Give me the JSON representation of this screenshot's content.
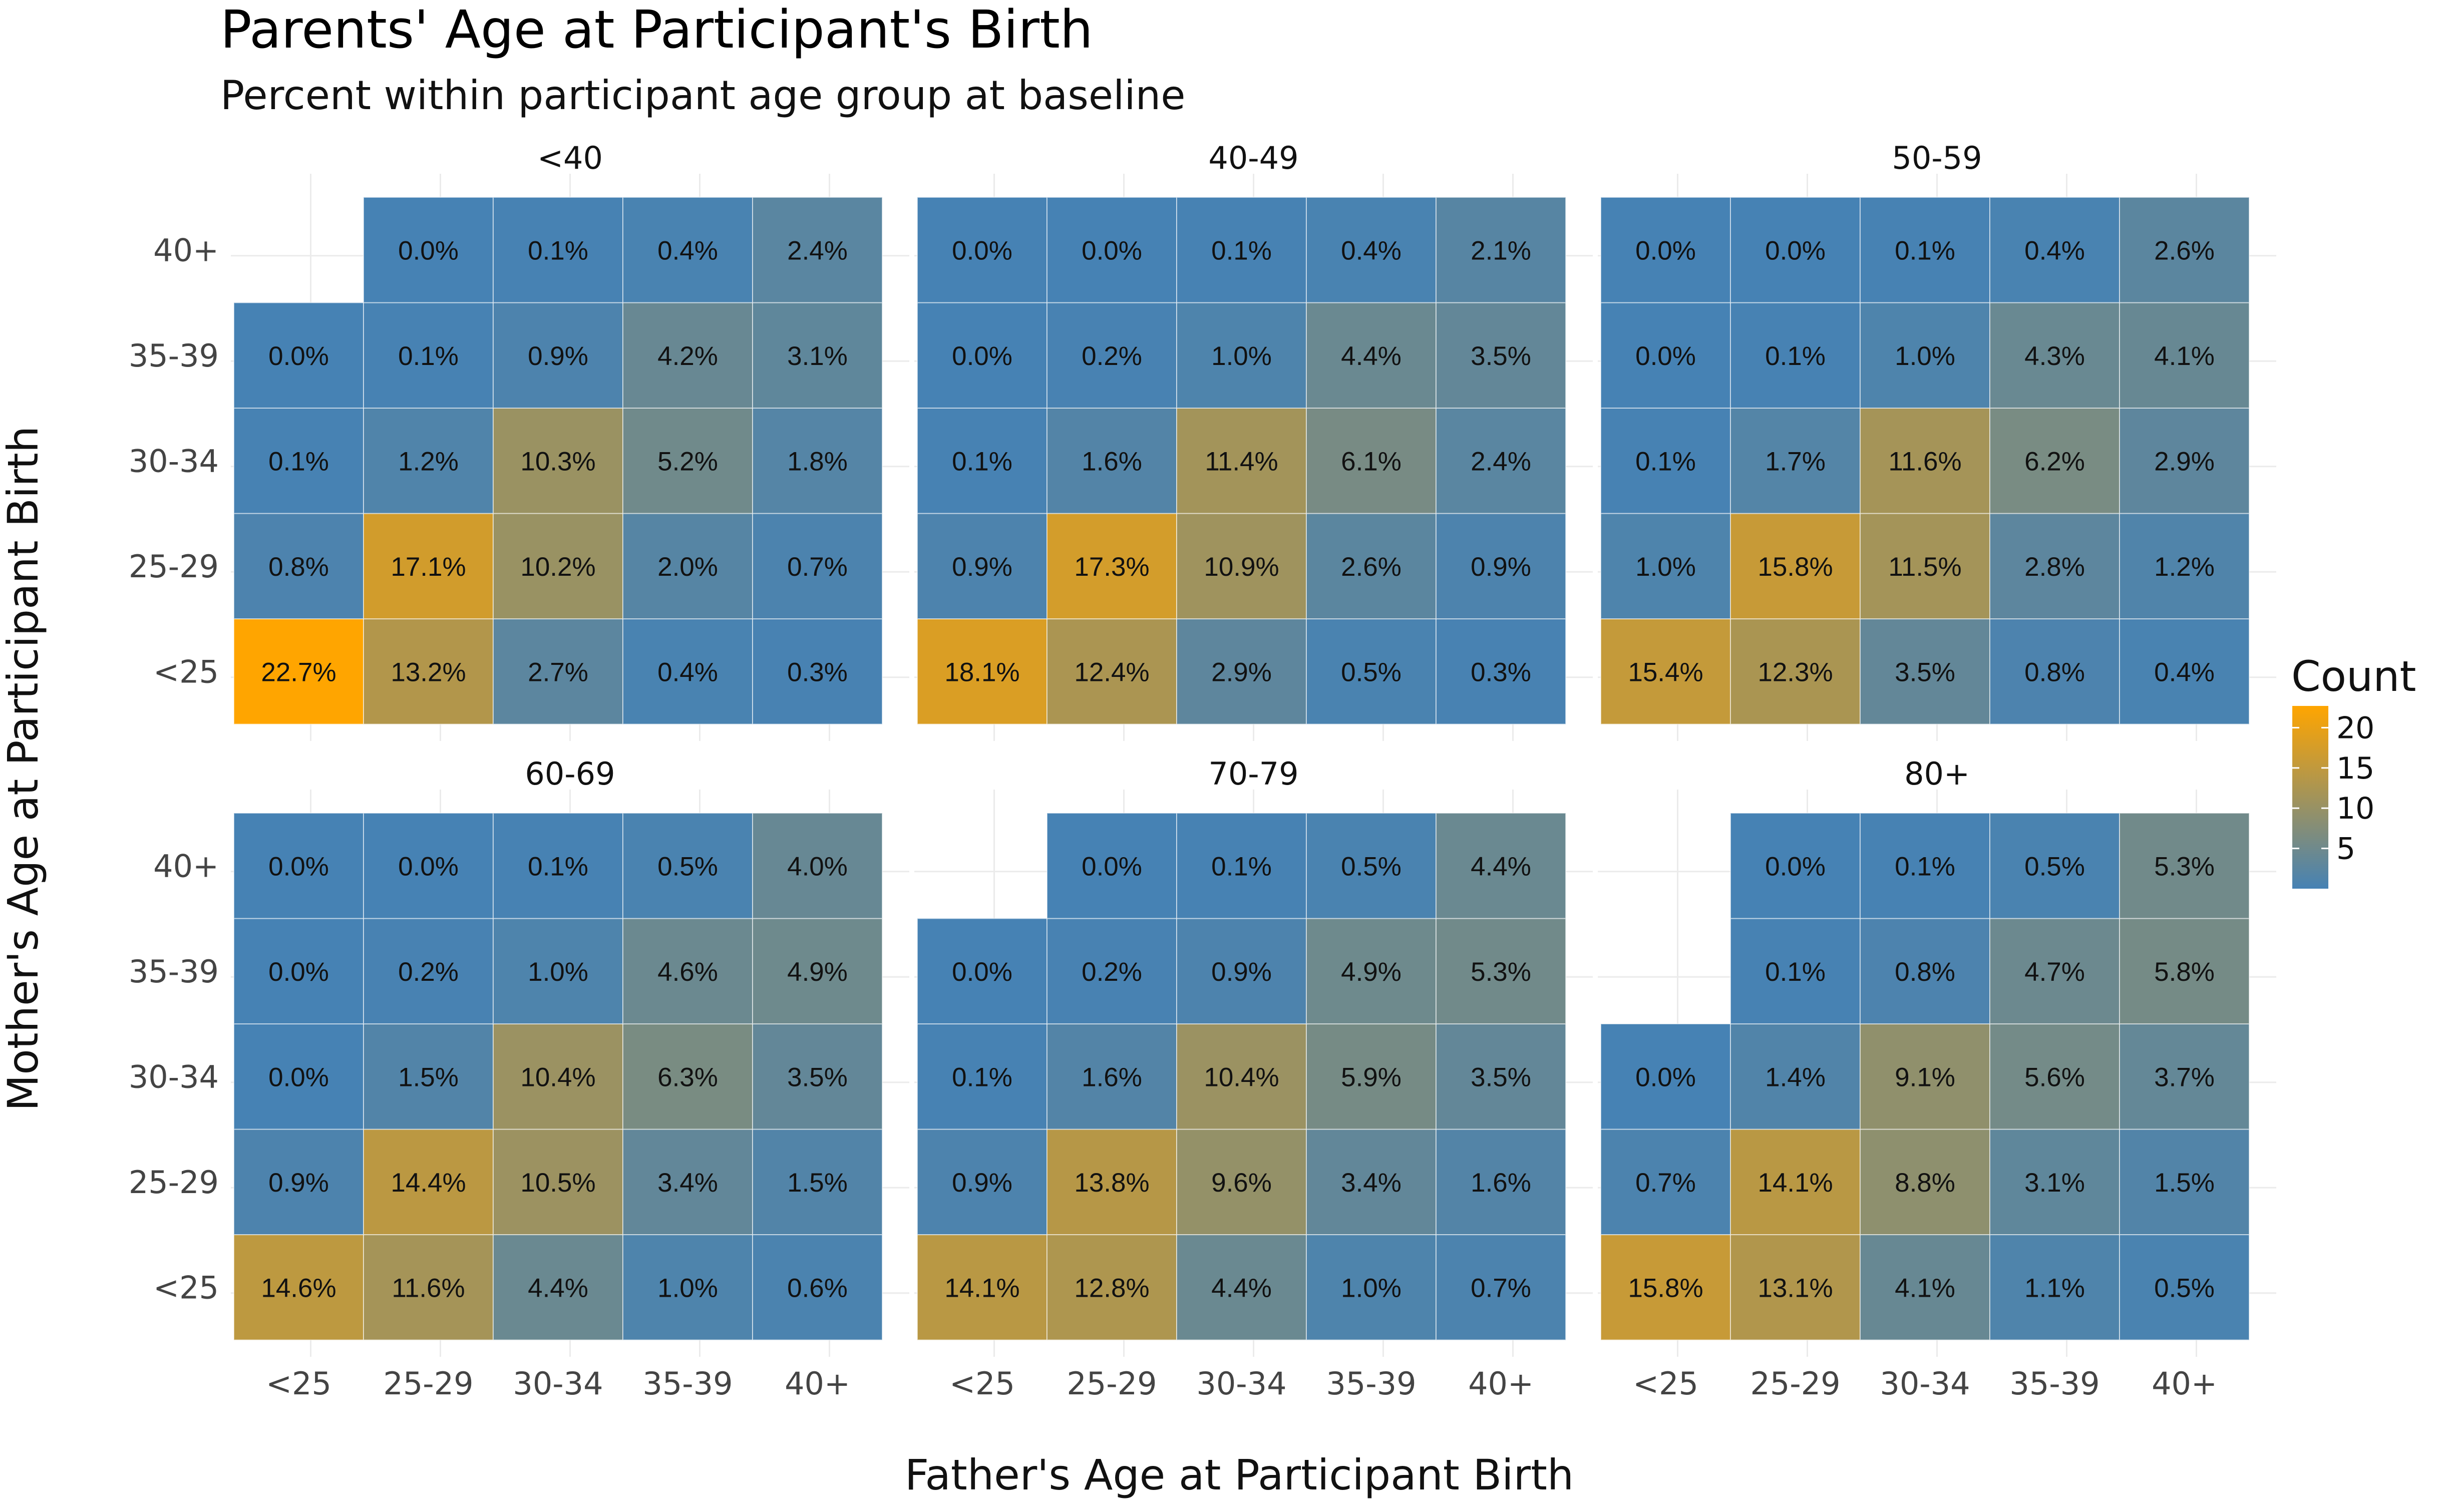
{
  "chart_data": {
    "type": "heatmap",
    "title": "Parents' Age at Participant's Birth",
    "subtitle": "Percent within participant age group at baseline",
    "xlabel": "Father's Age at Participant Birth",
    "ylabel": "Mother's Age at Participant Birth",
    "x_categories": [
      "<25",
      "25-29",
      "30-34",
      "35-39",
      "40+"
    ],
    "y_categories": [
      "<25",
      "25-29",
      "30-34",
      "35-39",
      "40+"
    ],
    "legend": {
      "title": "Count",
      "ticks": [
        5,
        10,
        15,
        20
      ],
      "range": [
        0,
        22.7
      ],
      "low_color": "#4682b4",
      "high_color": "#ffa500"
    },
    "panels": [
      {
        "label": "<40",
        "values": [
          [
            22.7,
            13.2,
            2.7,
            0.4,
            0.3
          ],
          [
            0.8,
            17.1,
            10.2,
            2.0,
            0.7
          ],
          [
            0.1,
            1.2,
            10.3,
            5.2,
            1.8
          ],
          [
            0.0,
            0.1,
            0.9,
            4.2,
            3.1
          ],
          [
            null,
            0.0,
            0.1,
            0.4,
            2.4
          ]
        ]
      },
      {
        "label": "40-49",
        "values": [
          [
            18.1,
            12.4,
            2.9,
            0.5,
            0.3
          ],
          [
            0.9,
            17.3,
            10.9,
            2.6,
            0.9
          ],
          [
            0.1,
            1.6,
            11.4,
            6.1,
            2.4
          ],
          [
            0.0,
            0.2,
            1.0,
            4.4,
            3.5
          ],
          [
            0.0,
            0.0,
            0.1,
            0.4,
            2.1
          ]
        ]
      },
      {
        "label": "50-59",
        "values": [
          [
            15.4,
            12.3,
            3.5,
            0.8,
            0.4
          ],
          [
            1.0,
            15.8,
            11.5,
            2.8,
            1.2
          ],
          [
            0.1,
            1.7,
            11.6,
            6.2,
            2.9
          ],
          [
            0.0,
            0.1,
            1.0,
            4.3,
            4.1
          ],
          [
            0.0,
            0.0,
            0.1,
            0.4,
            2.6
          ]
        ]
      },
      {
        "label": "60-69",
        "values": [
          [
            14.6,
            11.6,
            4.4,
            1.0,
            0.6
          ],
          [
            0.9,
            14.4,
            10.5,
            3.4,
            1.5
          ],
          [
            0.0,
            1.5,
            10.4,
            6.3,
            3.5
          ],
          [
            0.0,
            0.2,
            1.0,
            4.6,
            4.9
          ],
          [
            0.0,
            0.0,
            0.1,
            0.5,
            4.0
          ]
        ]
      },
      {
        "label": "70-79",
        "values": [
          [
            14.1,
            12.8,
            4.4,
            1.0,
            0.7
          ],
          [
            0.9,
            13.8,
            9.6,
            3.4,
            1.6
          ],
          [
            0.1,
            1.6,
            10.4,
            5.9,
            3.5
          ],
          [
            0.0,
            0.2,
            0.9,
            4.9,
            5.3
          ],
          [
            null,
            0.0,
            0.1,
            0.5,
            4.4
          ]
        ]
      },
      {
        "label": "80+",
        "values": [
          [
            15.8,
            13.1,
            4.1,
            1.1,
            0.5
          ],
          [
            0.7,
            14.1,
            8.8,
            3.1,
            1.5
          ],
          [
            0.0,
            1.4,
            9.1,
            5.6,
            3.7
          ],
          [
            null,
            0.1,
            0.8,
            4.7,
            5.8
          ],
          [
            null,
            0.0,
            0.1,
            0.5,
            5.3
          ]
        ]
      }
    ]
  }
}
